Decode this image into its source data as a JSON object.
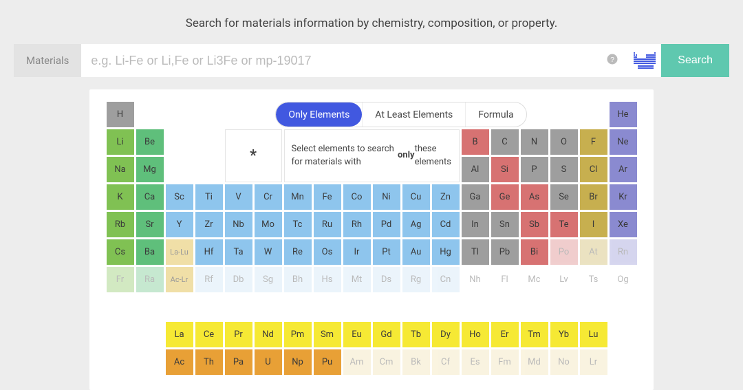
{
  "subtitle": "Search for materials information by chemistry, composition, or property.",
  "search": {
    "label": "Materials",
    "placeholder": "e.g. Li-Fe or Li,Fe or Li3Fe or mp-19017",
    "help": "?",
    "button": "Search"
  },
  "tabs": {
    "only": "Only Elements",
    "atleast": "At Least Elements",
    "formula": "Formula"
  },
  "wildcard": "*",
  "info_pre": "Select elements to search for materials with ",
  "info_bold": "only",
  "info_post": " these elements",
  "colors": {
    "green": "#80c153",
    "darkgreen": "#5fbf7b",
    "lightblue": "#8ec5ed",
    "paleblue": "#c8e1f5",
    "gray": "#9e9e9e",
    "red": "#d77272",
    "olive": "#c7af4f",
    "purple": "#8a8ad0",
    "yellow": "#f6e934",
    "paleyellow": "#f0dfa7",
    "orange": "#e8a036"
  },
  "row1": [
    {
      "s": "H",
      "c": "gray"
    },
    {
      "s": "He",
      "c": "purple"
    }
  ],
  "row2": [
    {
      "s": "Li",
      "c": "green"
    },
    {
      "s": "Be",
      "c": "darkgreen"
    },
    {
      "s": "B",
      "c": "red"
    },
    {
      "s": "C",
      "c": "gray"
    },
    {
      "s": "N",
      "c": "gray"
    },
    {
      "s": "O",
      "c": "gray"
    },
    {
      "s": "F",
      "c": "olive"
    },
    {
      "s": "Ne",
      "c": "purple"
    }
  ],
  "row3": [
    {
      "s": "Na",
      "c": "green"
    },
    {
      "s": "Mg",
      "c": "darkgreen"
    },
    {
      "s": "Al",
      "c": "gray"
    },
    {
      "s": "Si",
      "c": "red"
    },
    {
      "s": "P",
      "c": "gray"
    },
    {
      "s": "S",
      "c": "gray"
    },
    {
      "s": "Cl",
      "c": "olive"
    },
    {
      "s": "Ar",
      "c": "purple"
    }
  ],
  "row4": [
    {
      "s": "K",
      "c": "green"
    },
    {
      "s": "Ca",
      "c": "darkgreen"
    },
    {
      "s": "Sc",
      "c": "lightblue"
    },
    {
      "s": "Ti",
      "c": "lightblue"
    },
    {
      "s": "V",
      "c": "lightblue"
    },
    {
      "s": "Cr",
      "c": "lightblue"
    },
    {
      "s": "Mn",
      "c": "lightblue"
    },
    {
      "s": "Fe",
      "c": "lightblue"
    },
    {
      "s": "Co",
      "c": "lightblue"
    },
    {
      "s": "Ni",
      "c": "lightblue"
    },
    {
      "s": "Cu",
      "c": "lightblue"
    },
    {
      "s": "Zn",
      "c": "lightblue"
    },
    {
      "s": "Ga",
      "c": "gray"
    },
    {
      "s": "Ge",
      "c": "red"
    },
    {
      "s": "As",
      "c": "red"
    },
    {
      "s": "Se",
      "c": "gray"
    },
    {
      "s": "Br",
      "c": "olive"
    },
    {
      "s": "Kr",
      "c": "purple"
    }
  ],
  "row5": [
    {
      "s": "Rb",
      "c": "green"
    },
    {
      "s": "Sr",
      "c": "darkgreen"
    },
    {
      "s": "Y",
      "c": "lightblue"
    },
    {
      "s": "Zr",
      "c": "lightblue"
    },
    {
      "s": "Nb",
      "c": "lightblue"
    },
    {
      "s": "Mo",
      "c": "lightblue"
    },
    {
      "s": "Tc",
      "c": "lightblue"
    },
    {
      "s": "Ru",
      "c": "lightblue"
    },
    {
      "s": "Rh",
      "c": "lightblue"
    },
    {
      "s": "Pd",
      "c": "lightblue"
    },
    {
      "s": "Ag",
      "c": "lightblue"
    },
    {
      "s": "Cd",
      "c": "lightblue"
    },
    {
      "s": "In",
      "c": "gray"
    },
    {
      "s": "Sn",
      "c": "gray"
    },
    {
      "s": "Sb",
      "c": "red"
    },
    {
      "s": "Te",
      "c": "red"
    },
    {
      "s": "I",
      "c": "olive"
    },
    {
      "s": "Xe",
      "c": "purple"
    }
  ],
  "row6": [
    {
      "s": "Cs",
      "c": "green"
    },
    {
      "s": "Ba",
      "c": "darkgreen"
    },
    {
      "s": "La-Lu",
      "c": "paleyellow",
      "tm": true
    },
    {
      "s": "Hf",
      "c": "lightblue"
    },
    {
      "s": "Ta",
      "c": "lightblue"
    },
    {
      "s": "W",
      "c": "lightblue"
    },
    {
      "s": "Re",
      "c": "lightblue"
    },
    {
      "s": "Os",
      "c": "lightblue"
    },
    {
      "s": "Ir",
      "c": "lightblue"
    },
    {
      "s": "Pt",
      "c": "lightblue"
    },
    {
      "s": "Au",
      "c": "lightblue"
    },
    {
      "s": "Hg",
      "c": "lightblue"
    },
    {
      "s": "Tl",
      "c": "gray"
    },
    {
      "s": "Pb",
      "c": "gray"
    },
    {
      "s": "Bi",
      "c": "red"
    },
    {
      "s": "Po",
      "c": "red",
      "f": true
    },
    {
      "s": "At",
      "c": "olive",
      "f": true
    },
    {
      "s": "Rn",
      "c": "purple",
      "f": true
    }
  ],
  "row7": [
    {
      "s": "Fr",
      "c": "green",
      "f": true
    },
    {
      "s": "Ra",
      "c": "darkgreen",
      "f": true
    },
    {
      "s": "Ac-Lr",
      "c": "paleyellow",
      "tm": true
    },
    {
      "s": "Rf",
      "c": "paleblue",
      "f": true
    },
    {
      "s": "Db",
      "c": "paleblue",
      "f": true
    },
    {
      "s": "Sg",
      "c": "paleblue",
      "f": true
    },
    {
      "s": "Bh",
      "c": "paleblue",
      "f": true
    },
    {
      "s": "Hs",
      "c": "paleblue",
      "f": true
    },
    {
      "s": "Mt",
      "c": "paleblue",
      "f": true
    },
    {
      "s": "Ds",
      "c": "paleblue",
      "f": true
    },
    {
      "s": "Rg",
      "c": "paleblue",
      "f": true
    },
    {
      "s": "Cn",
      "c": "paleblue",
      "f": true
    },
    {
      "s": "Nh",
      "c": "",
      "f": true
    },
    {
      "s": "Fl",
      "c": "",
      "f": true
    },
    {
      "s": "Mc",
      "c": "",
      "f": true
    },
    {
      "s": "Lv",
      "c": "",
      "f": true
    },
    {
      "s": "Ts",
      "c": "",
      "f": true
    },
    {
      "s": "Og",
      "c": "",
      "f": true
    }
  ],
  "lan": [
    {
      "s": "La",
      "c": "yellow"
    },
    {
      "s": "Ce",
      "c": "yellow"
    },
    {
      "s": "Pr",
      "c": "yellow"
    },
    {
      "s": "Nd",
      "c": "yellow"
    },
    {
      "s": "Pm",
      "c": "yellow"
    },
    {
      "s": "Sm",
      "c": "yellow"
    },
    {
      "s": "Eu",
      "c": "yellow"
    },
    {
      "s": "Gd",
      "c": "yellow"
    },
    {
      "s": "Tb",
      "c": "yellow"
    },
    {
      "s": "Dy",
      "c": "yellow"
    },
    {
      "s": "Ho",
      "c": "yellow"
    },
    {
      "s": "Er",
      "c": "yellow"
    },
    {
      "s": "Tm",
      "c": "yellow"
    },
    {
      "s": "Yb",
      "c": "yellow"
    },
    {
      "s": "Lu",
      "c": "yellow"
    }
  ],
  "act": [
    {
      "s": "Ac",
      "c": "orange"
    },
    {
      "s": "Th",
      "c": "orange"
    },
    {
      "s": "Pa",
      "c": "orange"
    },
    {
      "s": "U",
      "c": "orange"
    },
    {
      "s": "Np",
      "c": "orange"
    },
    {
      "s": "Pu",
      "c": "orange"
    },
    {
      "s": "Am",
      "c": "paleyellow",
      "f": true
    },
    {
      "s": "Cm",
      "c": "paleyellow",
      "f": true
    },
    {
      "s": "Bk",
      "c": "paleyellow",
      "f": true
    },
    {
      "s": "Cf",
      "c": "paleyellow",
      "f": true
    },
    {
      "s": "Es",
      "c": "paleyellow",
      "f": true
    },
    {
      "s": "Fm",
      "c": "paleyellow",
      "f": true
    },
    {
      "s": "Md",
      "c": "paleyellow",
      "f": true
    },
    {
      "s": "No",
      "c": "paleyellow",
      "f": true
    },
    {
      "s": "Lr",
      "c": "paleyellow",
      "f": true
    }
  ]
}
